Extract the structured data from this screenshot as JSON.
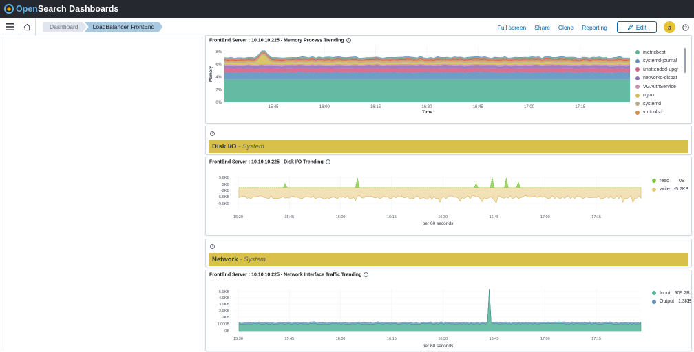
{
  "app": {
    "brand_prefix": "Open",
    "brand_suffix": "Search Dashboards"
  },
  "breadcrumbs": [
    "Dashboard",
    "LoadBalancer FrontEnd"
  ],
  "nav_actions": {
    "full_screen": "Full screen",
    "share": "Share",
    "clone": "Clone",
    "reporting": "Reporting",
    "edit": "Edit"
  },
  "user": {
    "initial": "a"
  },
  "colors": {
    "topbar": "#25282f",
    "link": "#006bb4",
    "banner": "#d8c04a",
    "avatar": "#e7c333"
  },
  "panels": {
    "memory": {
      "title": "FrontEnd Server : 10.10.10.225 - Memory Process Trending"
    },
    "disk_section": {
      "title": "Disk I/O",
      "subtitle": "- System"
    },
    "disk": {
      "title": "FrontEnd Server : 10.10.10.225 - Disk I/O Trending"
    },
    "network_section": {
      "title": "Network",
      "subtitle": "- System"
    },
    "network": {
      "title": "FrontEnd Server : 10.10.10.225 - Network Interface Traffic Trending"
    }
  },
  "chart_data": [
    {
      "type": "area",
      "stacked": true,
      "ylabel": "Memory",
      "xlabel": "Time",
      "y_ticks": [
        "0%",
        "2%",
        "4%",
        "6%",
        "8%"
      ],
      "ylim": [
        0,
        9
      ],
      "x_ticks": [
        "15:45",
        "16:00",
        "16:15",
        "16:30",
        "16:45",
        "17:00",
        "17:15"
      ],
      "series": [
        {
          "name": "metricbeat",
          "color": "#54b399",
          "level": 3.6
        },
        {
          "name": "systemd-journal",
          "color": "#6092c0",
          "level": 1.2
        },
        {
          "name": "unattended-upgr",
          "color": "#d36086",
          "level": 0.55
        },
        {
          "name": "networkd-dispat",
          "color": "#9170b8",
          "level": 0.45
        },
        {
          "name": "VGAuthService",
          "color": "#ca8eae",
          "level": 0.25
        },
        {
          "name": "nginx",
          "color": "#d6bf57",
          "level": 0.25
        },
        {
          "name": "systemd",
          "color": "#b9a888",
          "level": 0.2
        },
        {
          "name": "vmtoolsd",
          "color": "#da8b45",
          "level": 0.2
        }
      ],
      "extra_bands": [
        "#aa6556",
        "#e7664c",
        "#54b399",
        "#6092c0"
      ],
      "legend_visible": [
        "metricbeat",
        "systemd-journal",
        "unattended-upgr",
        "networkd-dispat",
        "VGAuthService",
        "nginx",
        "systemd",
        "vmtoolsd"
      ],
      "legend_colors": [
        "#54b399",
        "#6092c0",
        "#d36086",
        "#9170b8",
        "#ca8eae",
        "#d6bf57",
        "#b9a888",
        "#da8b45"
      ],
      "legend_placement": "right"
    },
    {
      "type": "area",
      "xlabel": "per 60 seconds",
      "y_ticks": [
        "5.6KB",
        "2KB",
        "-2KB",
        "-5.6KB",
        "-9.6KB"
      ],
      "x_ticks": [
        "15:30",
        "15:45",
        "16:00",
        "16:15",
        "16:30",
        "16:45",
        "17:00",
        "17:15"
      ],
      "series": [
        {
          "name": "read",
          "color": "#7bc73a",
          "legend_value": "0B"
        },
        {
          "name": "write",
          "color": "#e7c87a",
          "legend_value": "-5.7KB"
        }
      ],
      "legend_placement": "right"
    },
    {
      "type": "area",
      "xlabel": "per 60 seconds",
      "y_ticks": [
        "5.9KB",
        "4.9KB",
        "3.9KB",
        "2.9KB",
        "2KB",
        "1,000B",
        "0B"
      ],
      "x_ticks": [
        "15:30",
        "15:45",
        "16:00",
        "16:15",
        "16:30",
        "16:45",
        "17:00",
        "17:15"
      ],
      "series": [
        {
          "name": "Input",
          "color": "#54b399",
          "legend_value": "909.2B"
        },
        {
          "name": "Output",
          "color": "#6092c0",
          "legend_value": "1.3KB"
        }
      ],
      "legend_placement": "right"
    }
  ]
}
